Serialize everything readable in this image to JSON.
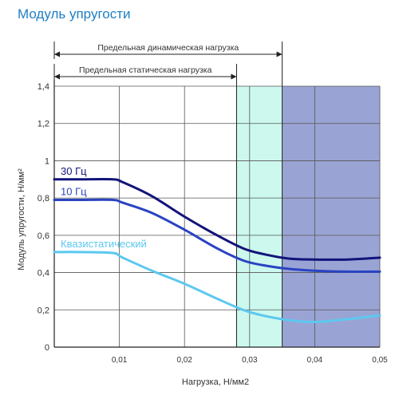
{
  "chart_data": {
    "type": "line",
    "title": "Модуль упругости",
    "xlabel": "Нагрузка, Н/мм2",
    "ylabel": "Модуль упругости, Н/мм²",
    "xlim": [
      0,
      0.05
    ],
    "ylim": [
      0,
      1.4
    ],
    "x_ticks": [
      0.01,
      0.02,
      0.03,
      0.04,
      0.05
    ],
    "x_tick_labels": [
      "0,01",
      "0,02",
      "0,03",
      "0,04",
      "0,05"
    ],
    "y_ticks": [
      0,
      0.2,
      0.4,
      0.6,
      0.8,
      1,
      1.2,
      1.4
    ],
    "y_tick_labels": [
      "0",
      "0,2",
      "0,4",
      "0,6",
      "0,8",
      "1",
      "1,2",
      "1,4"
    ],
    "grid": true,
    "bands": [
      {
        "from": 0.028,
        "to": 0.035,
        "color": "#ccf8ee"
      },
      {
        "from": 0.035,
        "to": 0.05,
        "color": "#9aa4d4"
      }
    ],
    "annotations": [
      {
        "text": "Предельная динамическая нагрузка",
        "from": 0,
        "to": 0.035
      },
      {
        "text": "Предельная статическая нагрузка",
        "from": 0,
        "to": 0.028
      }
    ],
    "series": [
      {
        "name": "30 Гц",
        "color": "#12137a",
        "x": [
          0,
          0.004,
          0.009,
          0.0105,
          0.015,
          0.02,
          0.025,
          0.029,
          0.032,
          0.036,
          0.04,
          0.045,
          0.05
        ],
        "y": [
          0.9,
          0.9,
          0.9,
          0.885,
          0.81,
          0.7,
          0.6,
          0.53,
          0.5,
          0.475,
          0.47,
          0.47,
          0.48
        ]
      },
      {
        "name": "10 Гц",
        "color": "#2a43c2",
        "x": [
          0,
          0.004,
          0.009,
          0.0105,
          0.015,
          0.02,
          0.025,
          0.029,
          0.032,
          0.036,
          0.04,
          0.045,
          0.05
        ],
        "y": [
          0.79,
          0.79,
          0.79,
          0.775,
          0.72,
          0.63,
          0.53,
          0.465,
          0.44,
          0.42,
          0.41,
          0.405,
          0.405
        ]
      },
      {
        "name": "Квазистатический",
        "color": "#5cc8ef",
        "x": [
          0,
          0.004,
          0.009,
          0.0105,
          0.015,
          0.02,
          0.025,
          0.029,
          0.032,
          0.036,
          0.04,
          0.045,
          0.05
        ],
        "y": [
          0.51,
          0.51,
          0.505,
          0.48,
          0.41,
          0.34,
          0.26,
          0.2,
          0.17,
          0.145,
          0.135,
          0.15,
          0.17
        ]
      }
    ]
  }
}
